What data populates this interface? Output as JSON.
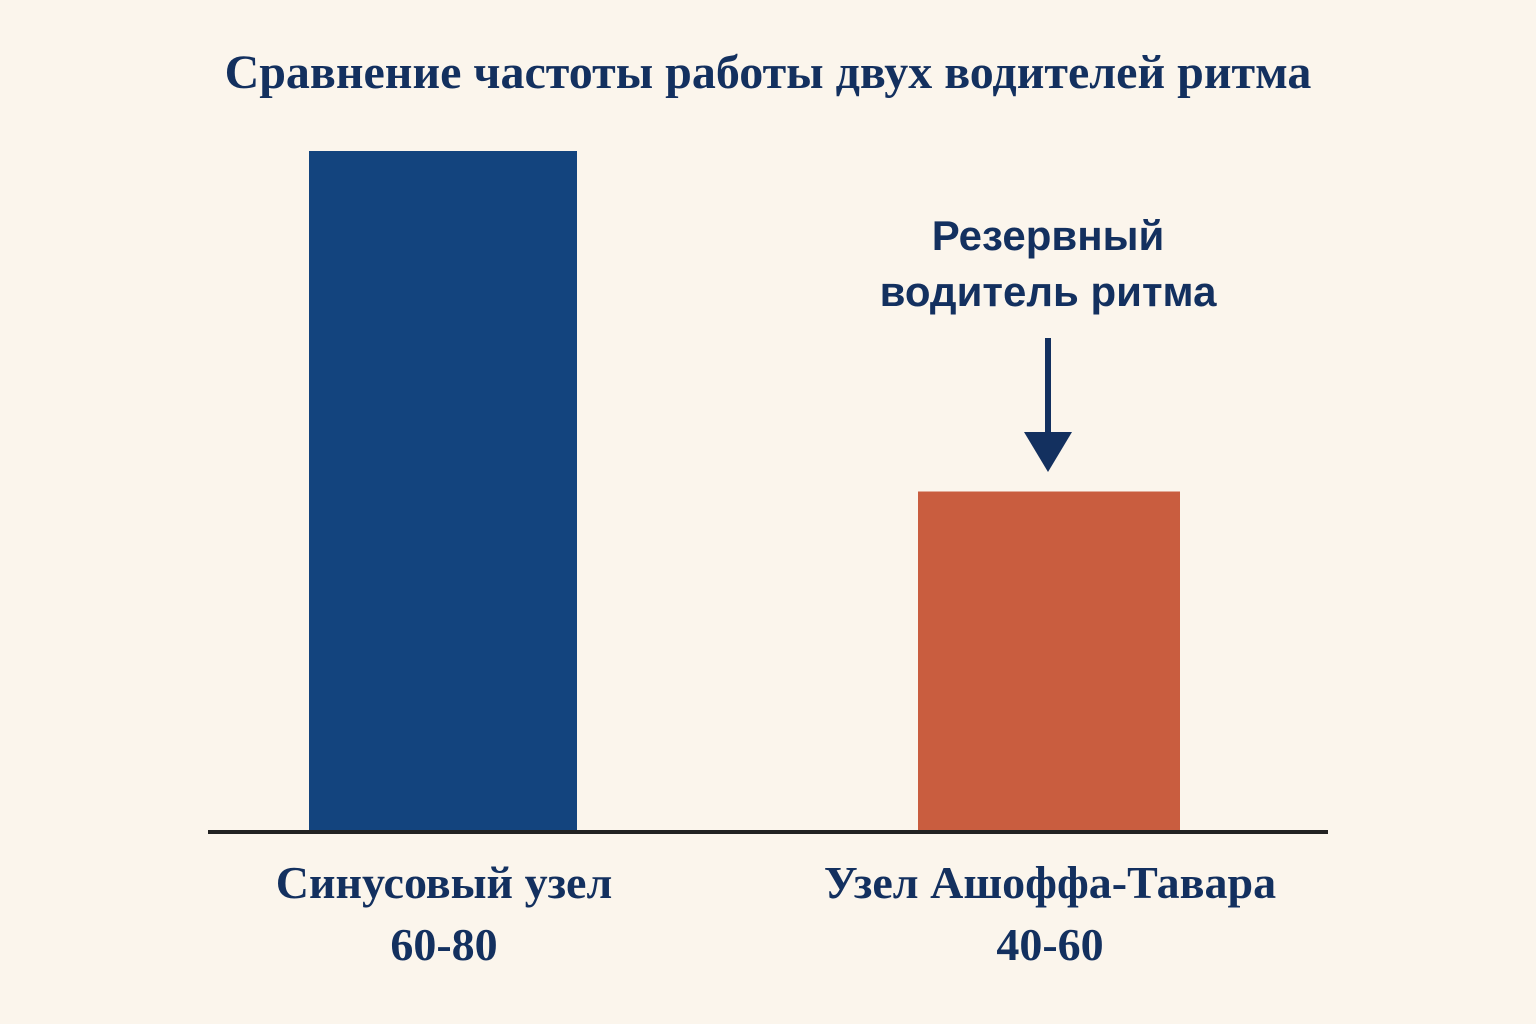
{
  "chart_data": {
    "type": "bar",
    "title": "Сравнение частоты работы двух водителей ритма",
    "categories": [
      "Синусовый узел",
      "Узел Ашоффа-Тавара"
    ],
    "value_labels": [
      "60-80",
      "40-60"
    ],
    "values": [
      80,
      40
    ],
    "colors": [
      "#13447e",
      "#c95d3f"
    ],
    "ylim": [
      0,
      80
    ],
    "xlabel": "",
    "ylabel": "",
    "grid": false,
    "annotation": {
      "target_category": "Узел Ашоффа-Тавара",
      "lines": [
        "Резервный",
        "водитель ритма"
      ],
      "arrow": "down"
    }
  },
  "style": {
    "background": "#fbf5ec",
    "text_color": "#13305f",
    "axis_color": "#222222"
  }
}
